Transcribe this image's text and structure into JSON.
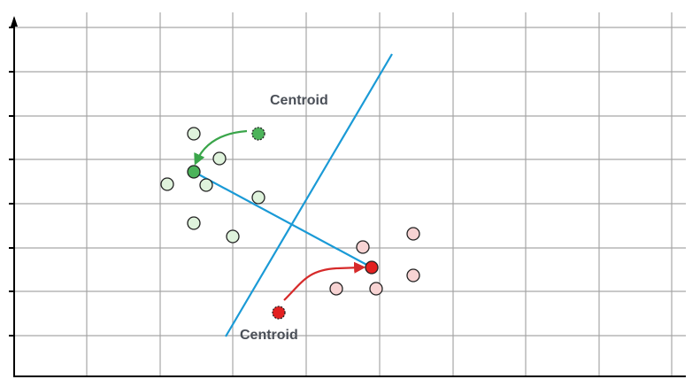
{
  "labels": {
    "top": "Centroid",
    "bottom": "Centroid"
  },
  "colors": {
    "grid": "#a6a6a6",
    "axis": "#000000",
    "boundary": "#1a9ad6",
    "green_fill": "#dff3dc",
    "green_centroid": "#4cb35a",
    "red_fill": "#f7d3d3",
    "red_centroid": "#e32020",
    "green_arrow": "#3aa54a",
    "red_arrow": "#d62a2a"
  },
  "clusters": [
    {
      "name": "green",
      "points": [
        [
          219,
          151
        ],
        [
          248,
          179
        ],
        [
          189,
          208
        ],
        [
          233,
          209
        ],
        [
          292,
          223
        ],
        [
          219,
          252
        ],
        [
          263,
          267
        ]
      ],
      "old_centroid": [
        292,
        151
      ],
      "new_centroid": [
        219,
        194
      ]
    },
    {
      "name": "red",
      "points": [
        [
          410,
          279
        ],
        [
          467,
          264
        ],
        [
          467,
          311
        ],
        [
          380,
          326
        ],
        [
          425,
          326
        ]
      ],
      "old_centroid": [
        315,
        353
      ],
      "new_centroid": [
        420,
        302
      ]
    }
  ]
}
